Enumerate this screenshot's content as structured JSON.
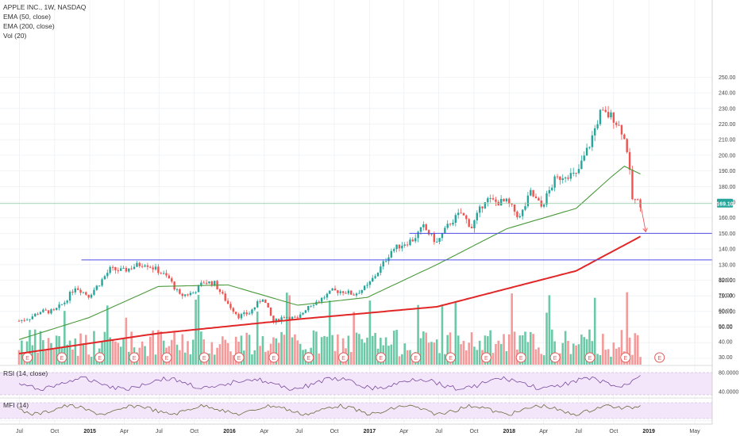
{
  "legend": {
    "title": "APPLE INC., 1W, NASDAQ",
    "ema50": "EMA (50, close)",
    "ema200": "EMA (200, close)",
    "vol": "Vol (20)"
  },
  "rsi_label": "RSI (14, close)",
  "mfi_label": "MFI (14)",
  "price_badge": "169.10",
  "colors": {
    "up": "#26a69a",
    "down": "#ef5350",
    "vol_up": "#6cc9a7",
    "vol_down": "#f49a9a",
    "ema50": "#4a9a3c",
    "ema200": "#e12727",
    "hline": "#4e4ee6",
    "price_line": "#8cc9a0",
    "rsi_line": "#7a4a9e",
    "mfi_line": "#6b6b3a",
    "indicator_bg": "#f3e6fb"
  },
  "x_axis_labels": [
    "Jul",
    "Oct",
    "2015",
    "Apr",
    "Jul",
    "Oct",
    "2016",
    "Apr",
    "Jul",
    "Oct",
    "2017",
    "Apr",
    "Jul",
    "Oct",
    "2018",
    "Apr",
    "Jul",
    "Oct",
    "2019",
    "May"
  ],
  "rsi_axis_labels": [
    "80.0000",
    "40.0000"
  ],
  "chart_data": {
    "type": "candlestick",
    "title": "APPLE INC., 1W, NASDAQ",
    "y_ticks": [
      30,
      40,
      50,
      60,
      70,
      80,
      90,
      100,
      110,
      120,
      130,
      140,
      150,
      160,
      170,
      180,
      190,
      200,
      210,
      220,
      230,
      240,
      250
    ],
    "y_tick_labels": [
      "30.00",
      "40.00",
      "50.00",
      "60.00",
      "70.00",
      "80.00",
      "90.00",
      "100.00",
      "110.00",
      "120.00",
      "130.00",
      "140.00",
      "150.00",
      "160.00",
      "170.00",
      "180.00",
      "190.00",
      "200.00",
      "210.00",
      "220.00",
      "230.00",
      "240.00",
      "250.00"
    ],
    "ylim": [
      25,
      255
    ],
    "last_price": 169.1,
    "close_series": [
      [
        "2014-06-30",
        94
      ],
      [
        "2014-07-28",
        96
      ],
      [
        "2014-08-25",
        100
      ],
      [
        "2014-09-29",
        100
      ],
      [
        "2014-10-27",
        106
      ],
      [
        "2014-11-24",
        116
      ],
      [
        "2014-12-29",
        110
      ],
      [
        "2015-01-26",
        118
      ],
      [
        "2015-02-23",
        127
      ],
      [
        "2015-03-30",
        126
      ],
      [
        "2015-04-27",
        129
      ],
      [
        "2015-05-25",
        131
      ],
      [
        "2015-06-29",
        126
      ],
      [
        "2015-07-27",
        121
      ],
      [
        "2015-08-24",
        110
      ],
      [
        "2015-09-28",
        112
      ],
      [
        "2015-10-26",
        119
      ],
      [
        "2015-11-23",
        118
      ],
      [
        "2015-12-28",
        105
      ],
      [
        "2016-01-25",
        97
      ],
      [
        "2016-02-22",
        99
      ],
      [
        "2016-03-28",
        109
      ],
      [
        "2016-04-25",
        93
      ],
      [
        "2016-05-23",
        97
      ],
      [
        "2016-06-27",
        95
      ],
      [
        "2016-07-25",
        104
      ],
      [
        "2016-08-22",
        107
      ],
      [
        "2016-09-26",
        113
      ],
      [
        "2016-10-24",
        113
      ],
      [
        "2016-11-21",
        111
      ],
      [
        "2016-12-26",
        116
      ],
      [
        "2017-01-30",
        128
      ],
      [
        "2017-02-27",
        139
      ],
      [
        "2017-03-27",
        143
      ],
      [
        "2017-04-24",
        146
      ],
      [
        "2017-05-22",
        154
      ],
      [
        "2017-06-26",
        144
      ],
      [
        "2017-07-31",
        157
      ],
      [
        "2017-08-28",
        163
      ],
      [
        "2017-09-25",
        154
      ],
      [
        "2017-10-30",
        172
      ],
      [
        "2017-11-27",
        170
      ],
      [
        "2017-12-26",
        170
      ],
      [
        "2018-01-29",
        160
      ],
      [
        "2018-02-26",
        176
      ],
      [
        "2018-03-26",
        167
      ],
      [
        "2018-04-30",
        184
      ],
      [
        "2018-05-29",
        188
      ],
      [
        "2018-06-25",
        187
      ],
      [
        "2018-07-30",
        207
      ],
      [
        "2018-08-27",
        227
      ],
      [
        "2018-09-24",
        225
      ],
      [
        "2018-10-01",
        224
      ],
      [
        "2018-10-22",
        216
      ],
      [
        "2018-11-05",
        204
      ],
      [
        "2018-11-19",
        172
      ],
      [
        "2018-12-10",
        169
      ]
    ],
    "ema50_series": [
      [
        "2014-06-30",
        82
      ],
      [
        "2014-12-29",
        96
      ],
      [
        "2015-06-29",
        116
      ],
      [
        "2015-12-28",
        117
      ],
      [
        "2016-06-27",
        104
      ],
      [
        "2016-12-26",
        109
      ],
      [
        "2017-06-26",
        130
      ],
      [
        "2017-12-26",
        153
      ],
      [
        "2018-06-25",
        166
      ],
      [
        "2018-09-24",
        186
      ],
      [
        "2018-10-29",
        193
      ],
      [
        "2018-12-10",
        188
      ]
    ],
    "ema200_series": [
      [
        "2014-06-30",
        73
      ],
      [
        "2015-06-29",
        86
      ],
      [
        "2016-06-27",
        95
      ],
      [
        "2017-06-26",
        103
      ],
      [
        "2018-06-25",
        126
      ],
      [
        "2018-12-10",
        148
      ]
    ],
    "horizontal_levels": [
      150,
      133
    ],
    "forecast_arrow": [
      [
        "2018-12-10",
        169
      ],
      [
        "2018-12-24",
        151
      ]
    ],
    "volume_axis_labels": [
      "30.00",
      "40.00",
      "50.00",
      "60.00",
      "70.00",
      "80.00"
    ]
  }
}
